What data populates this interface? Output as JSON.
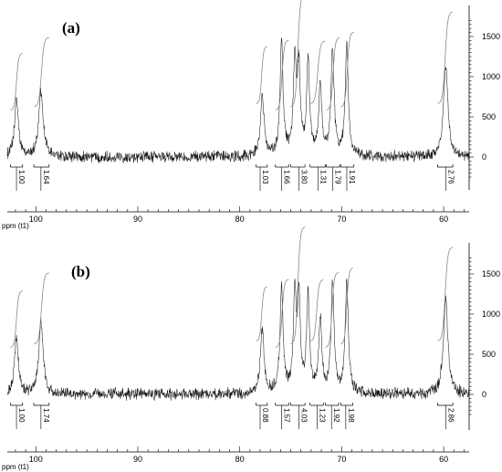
{
  "chart_data": [
    {
      "type": "line",
      "panel_label": "(a)",
      "xlabel": "ppm (t1)",
      "xlim": [
        102.8,
        57.5
      ],
      "x_ticks": [
        100,
        90,
        80,
        70,
        60
      ],
      "x_tick_labels": [
        "100",
        "90",
        "80",
        "70",
        "60"
      ],
      "ylim": [
        -300,
        1750
      ],
      "y_ticks": [
        0,
        500,
        1000,
        1500
      ],
      "y_tick_labels": [
        "0",
        "500",
        "1000",
        "1500"
      ],
      "peaks": [
        {
          "ppm": 101.9,
          "height": 720,
          "width": 0.22
        },
        {
          "ppm": 99.5,
          "height": 820,
          "width": 0.26
        },
        {
          "ppm": 77.8,
          "height": 720,
          "width": 0.22
        },
        {
          "ppm": 75.9,
          "height": 1400,
          "width": 0.18
        },
        {
          "ppm": 74.6,
          "height": 1150,
          "width": 0.17
        },
        {
          "ppm": 74.2,
          "height": 1050,
          "width": 0.17
        },
        {
          "ppm": 73.3,
          "height": 1180,
          "width": 0.17
        },
        {
          "ppm": 72.1,
          "height": 900,
          "width": 0.18
        },
        {
          "ppm": 70.9,
          "height": 1350,
          "width": 0.18
        },
        {
          "ppm": 69.5,
          "height": 1370,
          "width": 0.18
        },
        {
          "ppm": 59.8,
          "height": 1150,
          "width": 0.26
        }
      ],
      "integrals": [
        {
          "label": "1.00",
          "ppm": 101.9,
          "from": 102.5,
          "to": 101.3
        },
        {
          "label": "1.64",
          "ppm": 99.5,
          "from": 100.2,
          "to": 98.7
        },
        {
          "label": "1.03",
          "ppm": 78.0,
          "from": 78.4,
          "to": 77.3
        },
        {
          "label": "1.66",
          "ppm": 75.9,
          "from": 76.5,
          "to": 75.2
        },
        {
          "label": "3.80",
          "ppm": 74.2,
          "from": 75.0,
          "to": 73.6
        },
        {
          "label": "1.31",
          "ppm": 72.3,
          "from": 73.1,
          "to": 71.6
        },
        {
          "label": "1.79",
          "ppm": 70.9,
          "from": 71.5,
          "to": 70.2
        },
        {
          "label": "1.91",
          "ppm": 69.5,
          "from": 70.1,
          "to": 68.8
        },
        {
          "label": "2.76",
          "ppm": 59.8,
          "from": 60.6,
          "to": 59.1
        }
      ]
    },
    {
      "type": "line",
      "panel_label": "(b)",
      "xlabel": "ppm (t1)",
      "xlim": [
        102.8,
        57.5
      ],
      "x_ticks": [
        100,
        90,
        80,
        70,
        60
      ],
      "x_tick_labels": [
        "100",
        "90",
        "80",
        "70",
        "60"
      ],
      "ylim": [
        -300,
        1750
      ],
      "y_ticks": [
        0,
        500,
        1000,
        1500
      ],
      "y_tick_labels": [
        "0",
        "500",
        "1000",
        "1500"
      ],
      "peaks": [
        {
          "ppm": 101.9,
          "height": 700,
          "width": 0.22
        },
        {
          "ppm": 99.5,
          "height": 880,
          "width": 0.26
        },
        {
          "ppm": 77.8,
          "height": 780,
          "width": 0.22
        },
        {
          "ppm": 75.9,
          "height": 1320,
          "width": 0.18
        },
        {
          "ppm": 74.6,
          "height": 1200,
          "width": 0.17
        },
        {
          "ppm": 74.2,
          "height": 1100,
          "width": 0.17
        },
        {
          "ppm": 73.3,
          "height": 1200,
          "width": 0.17
        },
        {
          "ppm": 72.1,
          "height": 920,
          "width": 0.18
        },
        {
          "ppm": 70.9,
          "height": 1380,
          "width": 0.18
        },
        {
          "ppm": 69.5,
          "height": 1400,
          "width": 0.18
        },
        {
          "ppm": 59.8,
          "height": 1200,
          "width": 0.26
        }
      ],
      "integrals": [
        {
          "label": "1.00",
          "ppm": 101.9,
          "from": 102.5,
          "to": 101.3
        },
        {
          "label": "1.74",
          "ppm": 99.5,
          "from": 100.2,
          "to": 98.7
        },
        {
          "label": "0.88",
          "ppm": 78.0,
          "from": 78.4,
          "to": 77.3
        },
        {
          "label": "1.57",
          "ppm": 75.9,
          "from": 76.5,
          "to": 75.2
        },
        {
          "label": "4.03",
          "ppm": 74.2,
          "from": 75.0,
          "to": 73.6
        },
        {
          "label": "1.23",
          "ppm": 72.4,
          "from": 73.1,
          "to": 71.8
        },
        {
          "label": "1.92",
          "ppm": 71.0,
          "from": 71.6,
          "to": 70.3
        },
        {
          "label": "1.98",
          "ppm": 69.6,
          "from": 70.1,
          "to": 68.9
        },
        {
          "label": "2.86",
          "ppm": 59.8,
          "from": 60.6,
          "to": 59.1
        }
      ]
    }
  ],
  "colors": {
    "trace": "#1a1a1a",
    "integral": "#8a8a8a",
    "axis": "#000000"
  }
}
